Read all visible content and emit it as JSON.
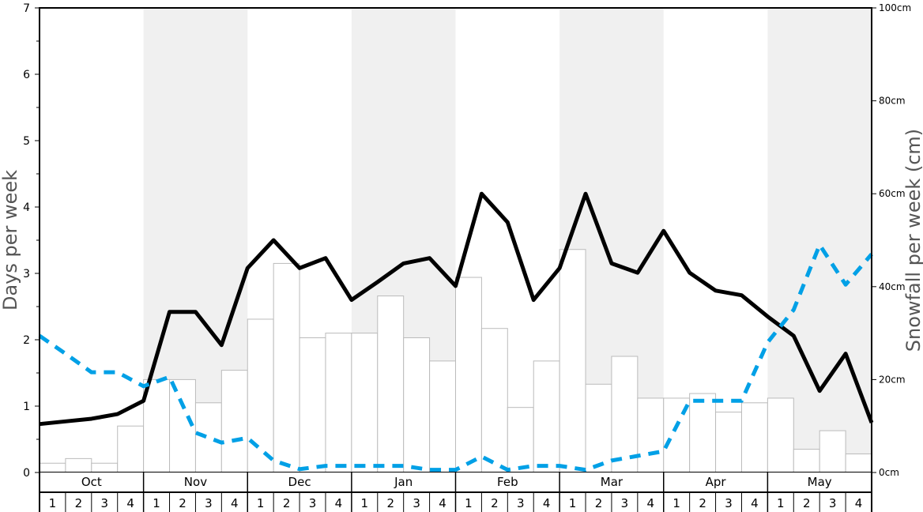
{
  "chart_data": {
    "type": "bar+line",
    "ylabel": "Days per week",
    "y2label": "Snowfall per week (cm)",
    "ylim": [
      0,
      7
    ],
    "y2lim": [
      0,
      100
    ],
    "yticks": [
      "0",
      "1",
      "2",
      "3",
      "4",
      "5",
      "6",
      "7"
    ],
    "y2ticks": [
      "0cm",
      "20cm",
      "40cm",
      "60cm",
      "80cm",
      "100cm"
    ],
    "months": [
      "Oct",
      "Nov",
      "Dec",
      "Jan",
      "Feb",
      "Mar",
      "Apr",
      "May"
    ],
    "weeks": [
      "1",
      "2",
      "3",
      "4"
    ],
    "shaded_months": [
      "Nov",
      "Jan",
      "Mar",
      "May"
    ],
    "colors": {
      "bars": "#ffffff",
      "bar_stroke": "#bbbbbb",
      "shade": "#f0f0f0",
      "line_solid": "#000000",
      "line_dashed": "#00a0e6"
    },
    "snowfall_cm": [
      2,
      3,
      2,
      10,
      20,
      20,
      15,
      22,
      33,
      45,
      29,
      30,
      30,
      38,
      29,
      24,
      42,
      31,
      14,
      24,
      48,
      19,
      25,
      16,
      16,
      17,
      13,
      15,
      16,
      5,
      9,
      4
    ],
    "series": [
      {
        "style": "solid",
        "values": [
          0.73,
          0.77,
          0.81,
          0.88,
          1.08,
          2.42,
          2.42,
          1.92,
          3.08,
          3.5,
          3.08,
          3.23,
          2.6,
          2.87,
          3.15,
          3.23,
          2.81,
          4.2,
          3.77,
          2.6,
          3.08,
          4.2,
          3.15,
          3.01,
          3.64,
          3.01,
          2.74,
          2.67,
          2.35,
          2.06,
          1.23,
          1.79,
          0.75
        ]
      },
      {
        "style": "dashed",
        "values": [
          2.06,
          1.79,
          1.51,
          1.51,
          1.3,
          1.44,
          0.6,
          0.45,
          0.52,
          0.18,
          0.05,
          0.1,
          0.1,
          0.1,
          0.1,
          0.04,
          0.04,
          0.24,
          0.04,
          0.1,
          0.1,
          0.04,
          0.18,
          0.25,
          0.32,
          1.08,
          1.08,
          1.08,
          1.96,
          2.45,
          3.43,
          2.83,
          3.29
        ]
      }
    ]
  }
}
